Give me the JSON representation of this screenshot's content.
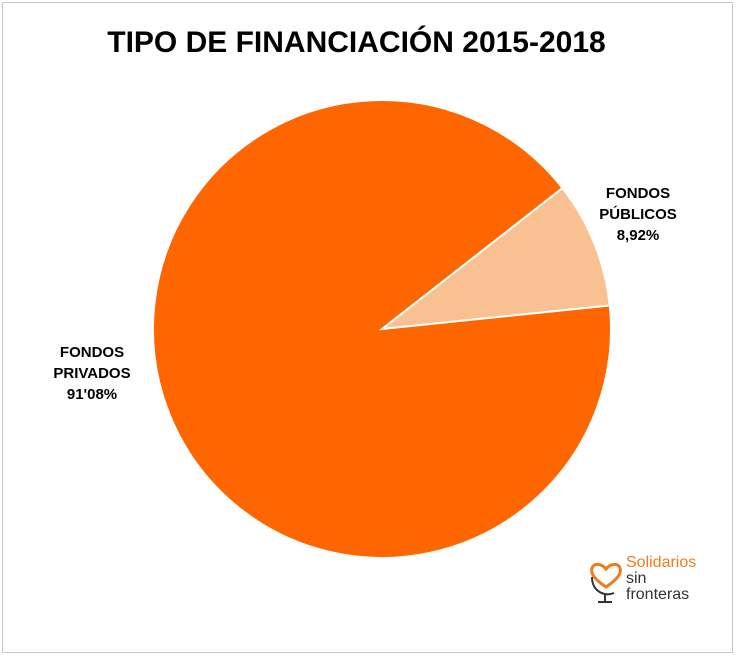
{
  "chart_data": {
    "type": "pie",
    "title": "TIPO DE FINANCIACIÓN 2015-2018",
    "slices": [
      {
        "name_lines": [
          "FONDOS",
          "PÚBLICOS"
        ],
        "value_label": "8,92%",
        "value": 8.92,
        "color": "#f9c191"
      },
      {
        "name_lines": [
          "FONDOS",
          "PRIVADOS"
        ],
        "value_label": "91'08%",
        "value": 91.08,
        "color": "#ff6600"
      }
    ],
    "start_angle_deg": -84
  },
  "logo": {
    "line1": "Solidarios",
    "line2": "sin",
    "line3": "fronteras",
    "icon": "heart-globe-icon",
    "accent": "#f07b1c"
  }
}
